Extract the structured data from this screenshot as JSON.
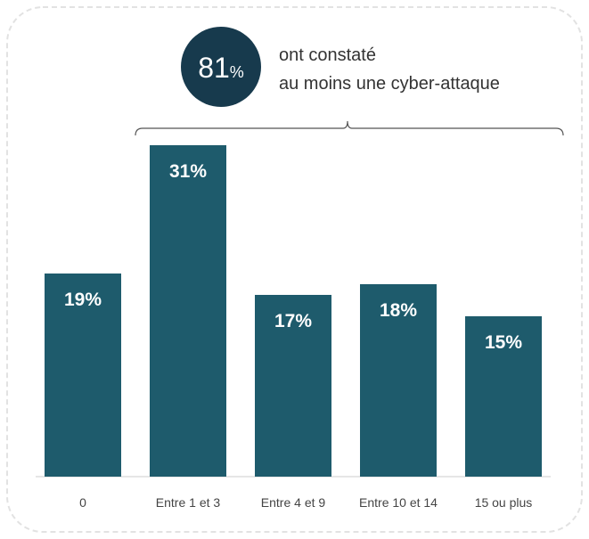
{
  "chart_data": {
    "type": "bar",
    "categories": [
      "0",
      "Entre 1 et 3",
      "Entre 4 et 9",
      "Entre 10 et 14",
      "15 ou plus"
    ],
    "values": [
      19,
      31,
      17,
      18,
      15
    ],
    "value_labels": [
      "19%",
      "31%",
      "17%",
      "18%",
      "15%"
    ],
    "color": "#1e5b6c",
    "annotation": {
      "value": 81,
      "unit": "%",
      "lines": [
        "ont constaté",
        "au moins une cyber-attaque"
      ],
      "color": "#173a4d"
    }
  }
}
